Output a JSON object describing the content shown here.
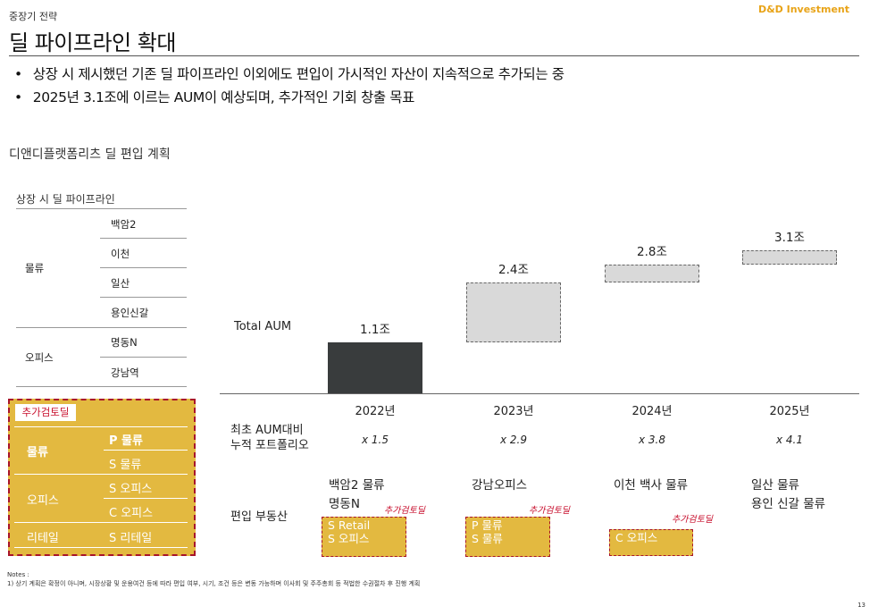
{
  "header": {
    "section": "중장기 전략",
    "brand": "D&D Investment",
    "title": "딜 파이프라인 확대"
  },
  "bullets": [
    "상장 시 제시했던 기존 딜 파이프라인 이외에도 편입이 가시적인 자산이 지속적으로 추가되는 중",
    "2025년 3.1조에 이르는 AUM이 예상되며, 추가적인 기회 창출 목표"
  ],
  "subhead": "디앤디플랫폼리츠 딜 편입 계획",
  "pipeline": {
    "title": "상장 시 딜 파이프라인",
    "groups": [
      {
        "name": "물류",
        "items": [
          "백암2",
          "이천",
          "일산",
          "용인신갈"
        ]
      },
      {
        "name": "오피스",
        "items": [
          "명동N",
          "강남역"
        ]
      }
    ]
  },
  "review": {
    "tag": "추가검토딜",
    "rows": [
      {
        "group": "물류",
        "items": [
          "P 물류",
          "S 물류"
        ]
      },
      {
        "group": "오피스",
        "items": [
          "S 오피스",
          "C 오피스"
        ]
      },
      {
        "group": "리테일",
        "items": [
          "S 리테일"
        ]
      }
    ]
  },
  "chart_data": {
    "type": "bar",
    "label": "Total AUM",
    "categories": [
      "2022년",
      "2023년",
      "2024년",
      "2025년"
    ],
    "values": [
      1.1,
      2.4,
      2.8,
      3.1
    ],
    "value_labels": [
      "1.1조",
      "2.4조",
      "2.8조",
      "3.1조"
    ],
    "unit": "조",
    "style": [
      "solid",
      "dashed",
      "dashed",
      "dashed"
    ]
  },
  "rows": {
    "multiple_label_1": "최초 AUM대비",
    "multiple_label_2": "누적 포트폴리오",
    "multiples": [
      "x 1.5",
      "x 2.9",
      "x 3.8",
      "x 4.1"
    ],
    "assets_label": "편입 부동산"
  },
  "assets": [
    {
      "lines": [
        "백암2 물류",
        "명동N"
      ],
      "tag": "추가검토딜",
      "box": [
        "S Retail",
        "S 오피스"
      ]
    },
    {
      "lines": [
        "강남오피스"
      ],
      "tag": "추가검토딜",
      "box": [
        "P 물류",
        "S 물류"
      ]
    },
    {
      "lines": [
        "이천 백사 물류"
      ],
      "tag": "추가검토딜",
      "box": [
        "C 오피스"
      ]
    },
    {
      "lines": [
        "일산 물류",
        "용인 신갈 물류"
      ]
    }
  ],
  "notes": {
    "head": "Notes :",
    "line1": "1) 상기 계획은 확정이 아니며, 시장상황 및 운용여건 등에 따라 편입 여부, 시기, 조건 등은 변동 가능하며 이사회 및 주주총회 등 적법한 수권절차 후 진행 계획"
  },
  "page_number": "13",
  "colors": {
    "accent": "#E3B940",
    "dashed_red": "#A8142A",
    "tag_red": "#C8102E",
    "solid_bar": "#393c3d",
    "dashed_bar": "#d9d9d9",
    "brand": "#E8A317"
  }
}
